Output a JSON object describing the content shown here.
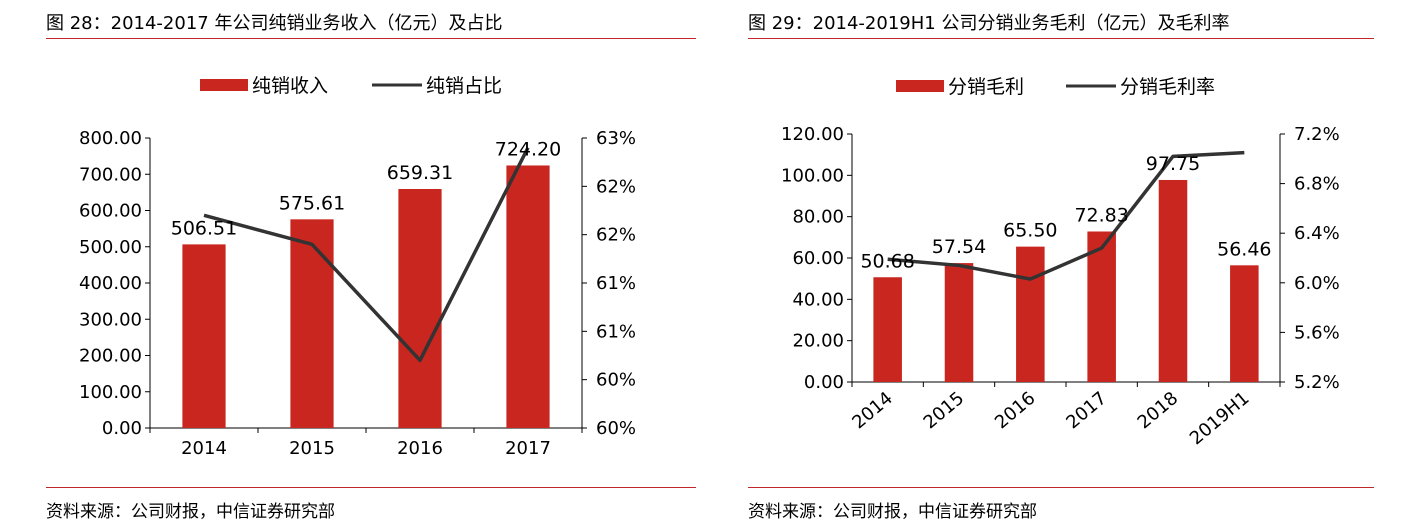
{
  "colors": {
    "bar": "#c8261f",
    "line": "#333333",
    "rule": "#c0282c"
  },
  "panels": [
    {
      "title": "图 28：2014-2017 年公司纯销业务收入（亿元）及占比",
      "source": "资料来源：公司财报，中信证券研究部"
    },
    {
      "title": "图 29：2014-2019H1 公司分销业务毛利（亿元）及毛利率",
      "source": "资料来源：公司财报，中信证券研究部"
    }
  ],
  "chart_data": [
    {
      "type": "bar",
      "categories": [
        "2014",
        "2015",
        "2016",
        "2017"
      ],
      "series": [
        {
          "name": "纯销收入",
          "type": "bar",
          "axis": "left",
          "values": [
            506.51,
            575.61,
            659.31,
            724.2
          ],
          "labels": [
            "506.51",
            "575.61",
            "659.31",
            "724.20"
          ]
        },
        {
          "name": "纯销占比",
          "type": "line",
          "axis": "right",
          "values": [
            62.2,
            61.9,
            60.7,
            62.9
          ]
        }
      ],
      "left_axis": {
        "ticks": [
          "0.00",
          "100.00",
          "200.00",
          "300.00",
          "400.00",
          "500.00",
          "600.00",
          "700.00",
          "800.00"
        ],
        "ylim": [
          0,
          800
        ]
      },
      "right_axis": {
        "ticks": [
          "60%",
          "60%",
          "61%",
          "61%",
          "62%",
          "62%",
          "63%"
        ],
        "ylim": [
          60,
          63
        ]
      },
      "legend": "top-center",
      "grid": false
    },
    {
      "type": "bar",
      "categories": [
        "2014",
        "2015",
        "2016",
        "2017",
        "2018",
        "2019H1"
      ],
      "series": [
        {
          "name": "分销毛利",
          "type": "bar",
          "axis": "left",
          "values": [
            50.68,
            57.54,
            65.5,
            72.83,
            97.75,
            56.46
          ],
          "labels": [
            "50.68",
            "57.54",
            "65.50",
            "72.83",
            "97.75",
            "56.46"
          ]
        },
        {
          "name": "分销毛利率",
          "type": "line",
          "axis": "right",
          "values": [
            6.19,
            6.14,
            6.03,
            6.28,
            7.02,
            7.05
          ]
        }
      ],
      "left_axis": {
        "ticks": [
          "0.00",
          "20.00",
          "40.00",
          "60.00",
          "80.00",
          "100.00",
          "120.00"
        ],
        "ylim": [
          0,
          120
        ]
      },
      "right_axis": {
        "ticks": [
          "5.2%",
          "5.6%",
          "6.0%",
          "6.4%",
          "6.8%",
          "7.2%"
        ],
        "ylim": [
          5.2,
          7.2
        ]
      },
      "legend": "top-center",
      "grid": false,
      "x_label_rotation": -40
    }
  ]
}
